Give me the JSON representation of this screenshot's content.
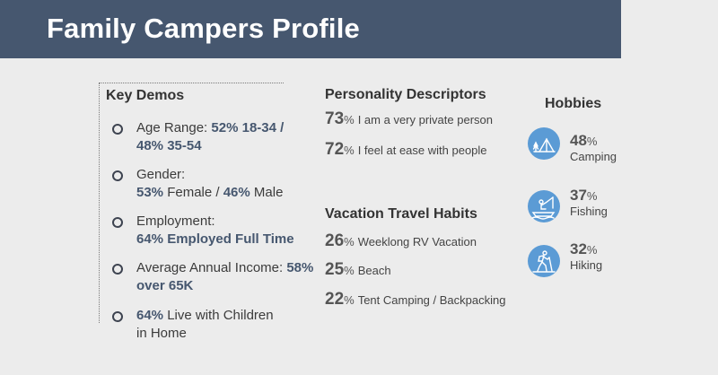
{
  "header": {
    "title": "Family Campers Profile"
  },
  "key_demos": {
    "title": "Key Demos",
    "age": {
      "label": "Age Range: ",
      "value1": "52% 18-34 /",
      "value2": "48% 35-54"
    },
    "gender": {
      "label": "Gender:",
      "pct1": "53%",
      "text1": " Female / ",
      "pct2": "46%",
      "text2": " Male"
    },
    "employment": {
      "label": "Employment:",
      "value": "64% Employed Full Time"
    },
    "income": {
      "label": "Average Annual Income: ",
      "value1": "58%",
      "value2": "over 65K"
    },
    "children": {
      "pct": "64%",
      "text1": " Live with Children",
      "text2": "in Home"
    }
  },
  "personality": {
    "title": "Personality Descriptors",
    "items": [
      {
        "num": "73",
        "pct": "%",
        "text": "I am a very private person"
      },
      {
        "num": "72",
        "pct": "%",
        "text": "I feel at ease with people"
      }
    ]
  },
  "vacation": {
    "title": "Vacation Travel Habits",
    "items": [
      {
        "num": "26",
        "pct": "%",
        "text": "Weeklong RV Vacation"
      },
      {
        "num": "25",
        "pct": "%",
        "text": "Beach"
      },
      {
        "num": "22",
        "pct": "%",
        "text": "Tent Camping / Backpacking"
      }
    ]
  },
  "hobbies": {
    "title": "Hobbies",
    "items": [
      {
        "num": "48",
        "pct": "%",
        "label": "Camping",
        "icon": "tent-icon"
      },
      {
        "num": "37",
        "pct": "%",
        "label": "Fishing",
        "icon": "fishing-boat-icon"
      },
      {
        "num": "32",
        "pct": "%",
        "label": "Hiking",
        "icon": "hiker-icon"
      }
    ]
  },
  "colors": {
    "header": "#46576f",
    "accent": "#5b9bd5",
    "highlight": "#46576f"
  }
}
